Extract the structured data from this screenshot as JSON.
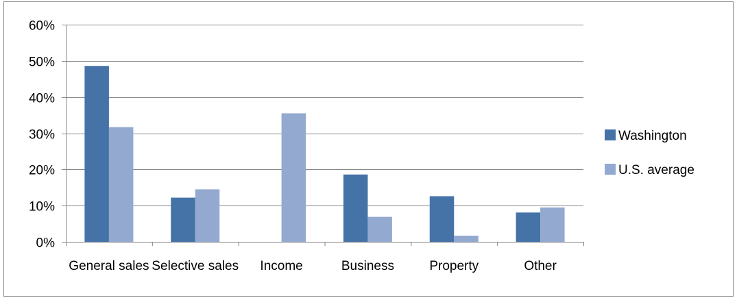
{
  "chart_data": {
    "type": "bar",
    "title": "",
    "xlabel": "",
    "ylabel": "",
    "categories": [
      "General sales",
      "Selective sales",
      "Income",
      "Business",
      "Property",
      "Other"
    ],
    "series": [
      {
        "name": "Washington",
        "color": "#4572a7",
        "values": [
          0.486,
          0.122,
          0.0,
          0.186,
          0.126,
          0.081
        ]
      },
      {
        "name": "U.S. average",
        "color": "#93a9d0",
        "values": [
          0.317,
          0.145,
          0.355,
          0.069,
          0.017,
          0.095
        ]
      }
    ],
    "ylim": [
      0,
      0.6
    ],
    "yticks": [
      {
        "value": 0.0,
        "label": "0%"
      },
      {
        "value": 0.1,
        "label": "10%"
      },
      {
        "value": 0.2,
        "label": "20%"
      },
      {
        "value": 0.3,
        "label": "30%"
      },
      {
        "value": 0.4,
        "label": "40%"
      },
      {
        "value": 0.5,
        "label": "50%"
      },
      {
        "value": 0.6,
        "label": "60%"
      }
    ],
    "grid": true,
    "legend": "right"
  }
}
